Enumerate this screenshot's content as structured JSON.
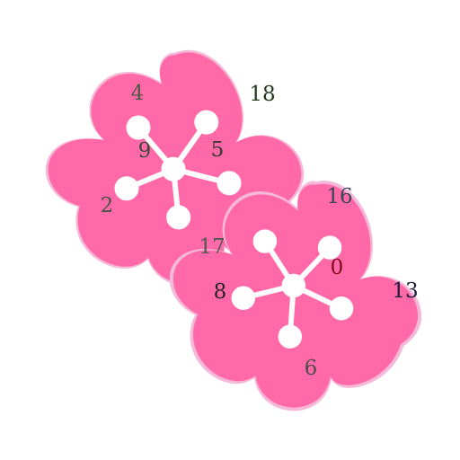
{
  "colors": {
    "background": "#ffffff",
    "petal": "#ff69a8",
    "petal_edge": "#f5b8d8",
    "hole": "#ffffff"
  },
  "flowers": [
    {
      "name": "upper-left-flower",
      "numbers": [
        {
          "text": "4",
          "color": "#4a5a46"
        },
        {
          "text": "18",
          "color": "#233a1c"
        },
        {
          "text": "9",
          "color": "#3e4a3a"
        },
        {
          "text": "5",
          "color": "#333a30"
        },
        {
          "text": "2",
          "color": "#4a5448"
        },
        {
          "text": "17",
          "color": "#505a50"
        }
      ]
    },
    {
      "name": "lower-right-flower",
      "numbers": [
        {
          "text": "16",
          "color": "#3b4656"
        },
        {
          "text": "0",
          "color": "#7a0b1c"
        },
        {
          "text": "8",
          "color": "#262626"
        },
        {
          "text": "13",
          "color": "#1c1a3a"
        },
        {
          "text": "6",
          "color": "#4d4d4d"
        }
      ]
    }
  ]
}
